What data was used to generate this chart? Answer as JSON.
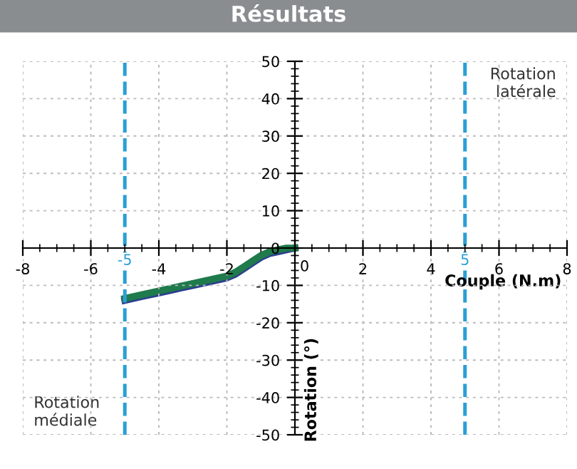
{
  "chart_data": {
    "type": "line",
    "title": "Résultats",
    "xlabel": "Couple (N.m)",
    "ylabel": "Rotation (°)",
    "x": [
      -5,
      -4.5,
      -4,
      -3.5,
      -3,
      -2.5,
      -2,
      -1.75,
      -1.5,
      -1.25,
      -1,
      -0.75,
      -0.5,
      -0.25,
      0
    ],
    "series": [
      {
        "color": "#2b3f8f",
        "values": [
          -14,
          -13,
          -12,
          -11,
          -10,
          -9,
          -8,
          -7,
          -5.5,
          -4,
          -2.5,
          -1.5,
          -1,
          -0.5,
          0
        ]
      },
      {
        "color": "#1f7a4c",
        "values": [
          -13.5,
          -12.5,
          -11.5,
          -10.5,
          -9.5,
          -8.5,
          -7.5,
          -6.5,
          -5,
          -3.5,
          -2,
          -1,
          -0.5,
          0,
          0
        ]
      }
    ],
    "xlim": [
      -8,
      8
    ],
    "ylim": [
      -50,
      50
    ],
    "xticks": [
      -8,
      -6,
      -4,
      -2,
      0,
      2,
      4,
      6,
      8
    ],
    "yticks": [
      -50,
      -40,
      -30,
      -20,
      -10,
      0,
      10,
      20,
      30,
      40,
      50
    ],
    "ref_lines": [
      {
        "axis": "x",
        "value": -5,
        "label": "-5",
        "color": "#2a9fd6",
        "line_style": "dashed"
      },
      {
        "axis": "x",
        "value": 5,
        "label": "5",
        "color": "#2a9fd6",
        "line_style": "dashed"
      }
    ],
    "annotations": [
      "Rotation\nmédiale",
      "Rotation\nlatérale"
    ],
    "grid": true,
    "legend": false,
    "marker": "none",
    "line_style": "solid"
  }
}
